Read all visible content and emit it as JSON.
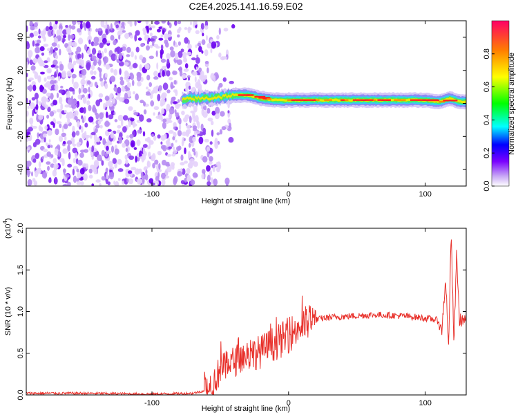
{
  "title": "C2E4.2025.141.16.59.E02",
  "chart_data": [
    {
      "type": "heatmap",
      "xlabel": "Height of straight line (km)",
      "ylabel": "Frequency (Hz)",
      "xlim": [
        -192,
        130
      ],
      "ylim": [
        -50,
        50
      ],
      "x_ticks": [
        -100,
        0,
        100
      ],
      "y_ticks": [
        -40,
        -20,
        0,
        20,
        40
      ],
      "colorbar": {
        "label": "Normalized spectral amplitude",
        "range": [
          0.0,
          1.0
        ],
        "ticks": [
          0.0,
          0.2,
          0.4,
          0.6,
          0.8
        ]
      },
      "noise_region_x": [
        -192,
        -60
      ],
      "signal_ridge": {
        "x": [
          -78,
          -70,
          -60,
          -50,
          -40,
          -30,
          -20,
          -10,
          0,
          20,
          40,
          60,
          80,
          100,
          110,
          118,
          125,
          130
        ],
        "y": [
          2,
          3,
          3,
          4,
          5,
          5,
          3,
          2,
          2,
          2,
          2,
          2,
          2,
          2,
          1,
          3,
          1,
          1
        ]
      }
    },
    {
      "type": "line",
      "xlabel": "Height of straight line (km)",
      "ylabel": "SNR (10 * v/v)",
      "y_multiplier": "(x10",
      "y_multiplier_exp": "4",
      "xlim": [
        -192,
        130
      ],
      "ylim": [
        0,
        2.0
      ],
      "x_ticks": [
        -100,
        0,
        100
      ],
      "y_ticks": [
        0.0,
        0.5,
        1.0,
        1.5,
        2.0
      ],
      "color": "#e8302a",
      "series": [
        {
          "x": [
            -192,
            -150,
            -100,
            -70,
            -62,
            -55,
            -50,
            -45,
            -40,
            -35,
            -30,
            -25,
            -20,
            -15,
            -10,
            -5,
            0,
            5,
            10,
            15,
            20,
            25,
            30,
            40,
            50,
            60,
            70,
            80,
            90,
            100,
            105,
            108,
            110,
            112,
            115,
            117,
            119,
            121,
            123,
            125,
            130
          ],
          "y": [
            0.02,
            0.02,
            0.01,
            0.02,
            0.05,
            0.15,
            0.3,
            0.35,
            0.4,
            0.45,
            0.48,
            0.5,
            0.52,
            0.58,
            0.62,
            0.66,
            0.72,
            0.78,
            0.83,
            0.87,
            0.9,
            0.92,
            0.93,
            0.94,
            0.95,
            0.96,
            0.96,
            0.95,
            0.94,
            0.92,
            0.91,
            0.9,
            0.88,
            0.75,
            1.4,
            0.55,
            1.95,
            0.6,
            1.7,
            0.9,
            0.9
          ]
        }
      ]
    }
  ]
}
